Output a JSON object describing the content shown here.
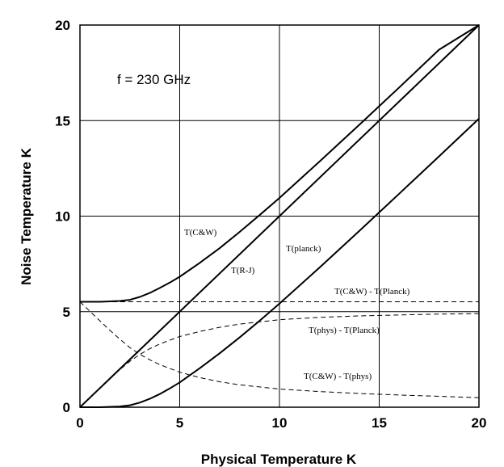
{
  "chart_data": {
    "type": "line",
    "title": "",
    "annotation": "f = 230 GHz",
    "xlabel": "Physical Temperature  K",
    "ylabel": "Noise Temperature  K",
    "xlim": [
      0,
      20
    ],
    "ylim": [
      0,
      20
    ],
    "xticks": [
      "0",
      "5",
      "10",
      "15",
      "20"
    ],
    "yticks": [
      "0",
      "5",
      "10",
      "15",
      "20"
    ],
    "grid": true,
    "series": [
      {
        "name": "T(C&W)",
        "style": "solid",
        "color": "#000000",
        "x": [
          0,
          1,
          2,
          2.5,
          3,
          3.5,
          4,
          4.5,
          5,
          6,
          7,
          8,
          9,
          10,
          12,
          14,
          16,
          18,
          20
        ],
        "y": [
          5.52,
          5.52,
          5.56,
          5.62,
          5.77,
          5.98,
          6.24,
          6.52,
          6.83,
          7.55,
          8.32,
          9.17,
          10.05,
          10.95,
          12.85,
          14.78,
          16.73,
          18.71,
          20.6
        ]
      },
      {
        "name": "T(R-J)",
        "style": "solid",
        "color": "#000000",
        "x": [
          0,
          20
        ],
        "y": [
          0,
          20
        ]
      },
      {
        "name": "T(planck)",
        "style": "solid",
        "color": "#000000",
        "x": [
          0,
          1,
          2,
          2.5,
          3,
          3.5,
          4,
          4.5,
          5,
          6,
          7,
          8,
          9,
          10,
          12,
          14,
          16,
          18,
          20
        ],
        "y": [
          0,
          0.0,
          0.04,
          0.1,
          0.24,
          0.44,
          0.69,
          0.98,
          1.3,
          2.04,
          2.82,
          3.65,
          4.52,
          5.42,
          7.3,
          9.22,
          11.17,
          13.13,
          15.1
        ]
      },
      {
        "name": "T(C&W) - T(Planck)",
        "style": "dashed",
        "color": "#000000",
        "x": [
          0,
          5,
          10,
          15,
          20
        ],
        "y": [
          5.52,
          5.52,
          5.52,
          5.52,
          5.52
        ]
      },
      {
        "name": "T(phys) - T(Planck)",
        "style": "dashed",
        "color": "#000000",
        "x": [
          0,
          0.5,
          1,
          1.5,
          2,
          2.5,
          3,
          3.5,
          4,
          5,
          6,
          7,
          8,
          10,
          12,
          14,
          16,
          18,
          20
        ],
        "y": [
          0,
          0.5,
          1,
          1.5,
          1.97,
          2.4,
          2.76,
          3.06,
          3.31,
          3.7,
          3.96,
          4.18,
          4.35,
          4.58,
          4.7,
          4.78,
          4.83,
          4.87,
          4.9
        ]
      },
      {
        "name": "T(C&W) - T(phys)",
        "style": "dashed",
        "color": "#000000",
        "x": [
          0,
          0.5,
          1,
          1.5,
          2,
          2.5,
          3,
          3.5,
          4,
          5,
          6,
          7,
          8,
          10,
          12,
          14,
          16,
          18,
          20
        ],
        "y": [
          5.52,
          5.02,
          4.52,
          4.02,
          3.56,
          3.12,
          2.77,
          2.48,
          2.23,
          1.83,
          1.55,
          1.33,
          1.17,
          0.95,
          0.82,
          0.72,
          0.64,
          0.57,
          0.5
        ]
      }
    ]
  }
}
